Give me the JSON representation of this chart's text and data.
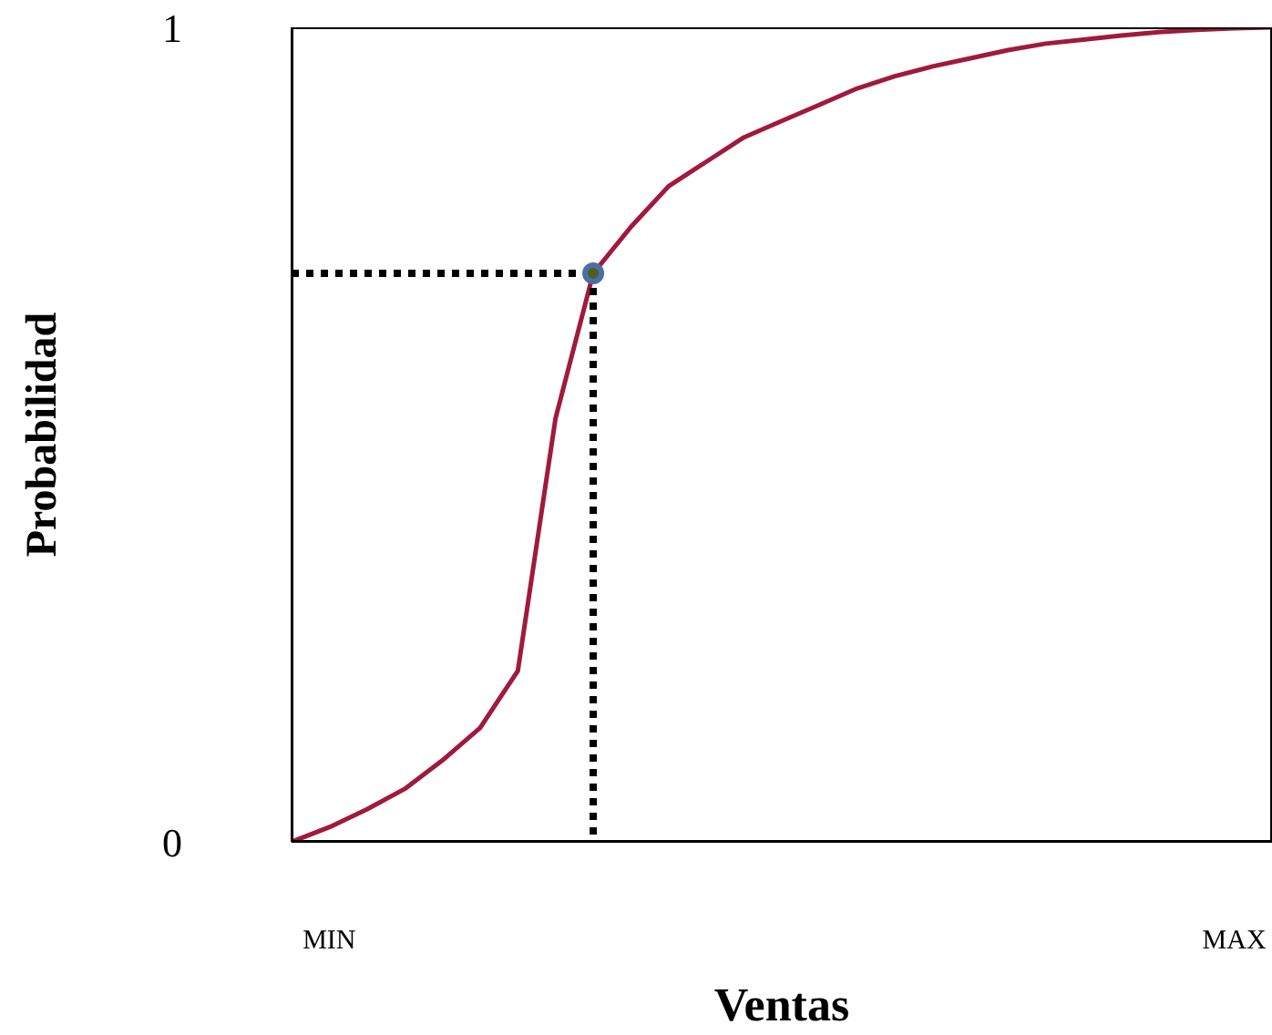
{
  "chart_data": {
    "type": "line",
    "xlabel": "Ventas",
    "ylabel": "Probabilidad",
    "ylim": [
      0,
      1
    ],
    "yticks": [
      0,
      1
    ],
    "grid": false,
    "categories": [
      null,
      "MIN",
      null,
      null,
      null,
      null,
      null,
      null,
      null,
      null,
      null,
      null,
      null,
      null,
      null,
      null,
      null,
      null,
      null,
      null,
      null,
      null,
      null,
      null,
      null,
      "MAX",
      null
    ],
    "series": [
      {
        "color": "#a01a3c",
        "marker": "none",
        "line_style": "solid",
        "values": [
          0,
          0.018,
          0.04,
          0.065,
          0.1,
          0.14,
          0.21,
          0.52,
          0.698,
          0.755,
          0.805,
          0.835,
          0.865,
          0.885,
          0.905,
          0.925,
          0.94,
          0.952,
          0.962,
          0.972,
          0.98,
          0.985,
          0.99,
          0.994,
          0.997,
          0.999,
          1
        ]
      },
      {
        "color": "#000000",
        "marker": "none",
        "line_style": "dotted",
        "values": [
          0.698,
          0.698,
          0.698,
          0.698,
          0.698,
          0.698,
          0.698,
          0.698,
          0.698,
          null,
          null,
          null,
          null,
          null,
          null,
          null,
          null,
          null,
          null,
          null,
          null,
          null,
          null,
          null,
          null,
          null,
          null
        ]
      },
      {
        "type": "scatter",
        "color": "#4f5f1f",
        "marker": "circle",
        "values": [
          null,
          null,
          null,
          null,
          null,
          null,
          null,
          null,
          0.698,
          null,
          null,
          null,
          null,
          null,
          null,
          null,
          null,
          null,
          null,
          null,
          null,
          null,
          null,
          null,
          null,
          null,
          null
        ]
      }
    ]
  }
}
